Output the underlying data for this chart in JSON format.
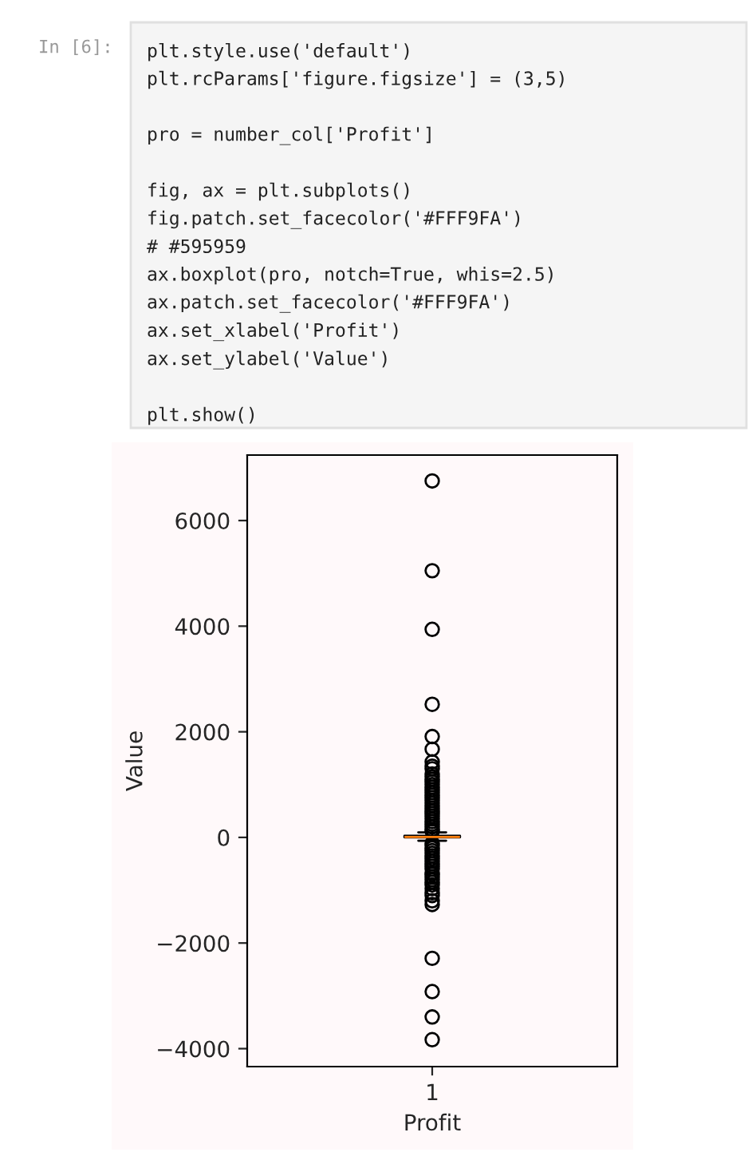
{
  "chart_data": {
    "type": "box",
    "xlabel": "Profit",
    "ylabel": "Value",
    "categories": [
      "1"
    ],
    "boxes": [
      {
        "low": -62,
        "q1": 2,
        "median": 9,
        "q3": 29,
        "high": 96,
        "outliers": [
          120,
          150,
          200,
          250,
          300,
          350,
          400,
          450,
          500,
          550,
          600,
          650,
          700,
          750,
          800,
          850,
          900,
          950,
          1000,
          1050,
          1100,
          1150,
          1200,
          1300,
          1350,
          1430,
          1670,
          1910,
          2520,
          3940,
          5050,
          6750,
          -110,
          -150,
          -200,
          -250,
          -300,
          -350,
          -400,
          -450,
          -500,
          -550,
          -600,
          -670,
          -700,
          -750,
          -800,
          -850,
          -900,
          -970,
          -1050,
          -1100,
          -1200,
          -1270,
          -2290,
          -2920,
          -3400,
          -3830
        ]
      }
    ],
    "ylim": [
      -4340,
      7240
    ],
    "yticks": [
      {
        "value": -4000,
        "label": "−4000"
      },
      {
        "value": -2000,
        "label": "−2000"
      },
      0,
      2000,
      4000,
      6000
    ],
    "grid": false,
    "legend": false,
    "annotations": [
      "In [6]:",
      "plt.style.use('default')\nplt.rcParams['figure.figsize'] = (3,5)\n\npro = number_col['Profit']\n\nfig, ax = plt.subplots()\nfig.patch.set_facecolor('#FFF9FA')\n# #595959\nax.boxplot(pro, notch=True, whis=2.5)\nax.patch.set_facecolor('#FFF9FA')\nax.set_xlabel('Profit')\nax.set_ylabel('Value')\n\nplt.show()"
    ]
  }
}
